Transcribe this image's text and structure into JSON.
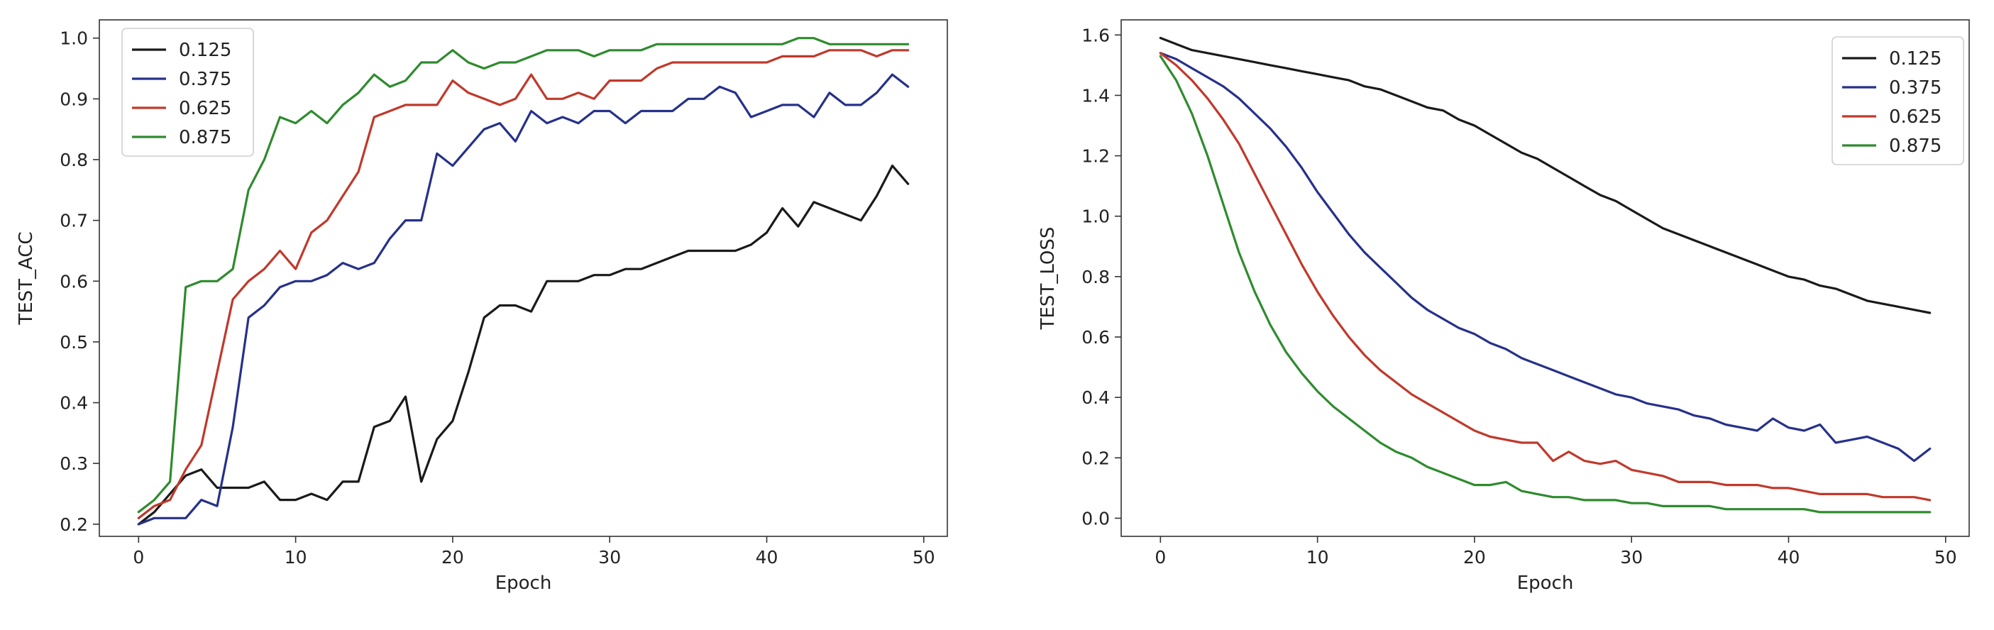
{
  "chart_data": [
    {
      "type": "line",
      "xlabel": "Epoch",
      "ylabel": "TEST_ACC",
      "xlim": [
        -2.5,
        51.5
      ],
      "ylim": [
        0.18,
        1.03
      ],
      "xticks": [
        0,
        10,
        20,
        30,
        40,
        50
      ],
      "yticks": [
        0.2,
        0.3,
        0.4,
        0.5,
        0.6,
        0.7,
        0.8,
        0.9,
        1.0
      ],
      "yticks_labels": [
        "0.2",
        "0.3",
        "0.4",
        "0.5",
        "0.6",
        "0.7",
        "0.8",
        "0.9",
        "1.0"
      ],
      "grid": false,
      "legend_position": "top-left",
      "series": [
        {
          "name": "0.125",
          "color": "#1a1a1a",
          "x": [
            0,
            1,
            2,
            3,
            4,
            5,
            6,
            7,
            8,
            9,
            10,
            11,
            12,
            13,
            14,
            15,
            16,
            17,
            18,
            19,
            20,
            21,
            22,
            23,
            24,
            25,
            26,
            27,
            28,
            29,
            30,
            31,
            32,
            33,
            34,
            35,
            36,
            37,
            38,
            39,
            40,
            41,
            42,
            43,
            44,
            45,
            46,
            47,
            48,
            49
          ],
          "values": [
            0.2,
            0.22,
            0.25,
            0.28,
            0.29,
            0.26,
            0.26,
            0.26,
            0.27,
            0.24,
            0.24,
            0.25,
            0.24,
            0.27,
            0.27,
            0.36,
            0.37,
            0.41,
            0.27,
            0.34,
            0.37,
            0.45,
            0.54,
            0.56,
            0.56,
            0.55,
            0.6,
            0.6,
            0.6,
            0.61,
            0.61,
            0.62,
            0.62,
            0.63,
            0.64,
            0.65,
            0.65,
            0.65,
            0.65,
            0.66,
            0.68,
            0.72,
            0.69,
            0.73,
            0.72,
            0.71,
            0.7,
            0.74,
            0.79,
            0.76
          ]
        },
        {
          "name": "0.375",
          "color": "#26318a",
          "x": [
            0,
            1,
            2,
            3,
            4,
            5,
            6,
            7,
            8,
            9,
            10,
            11,
            12,
            13,
            14,
            15,
            16,
            17,
            18,
            19,
            20,
            21,
            22,
            23,
            24,
            25,
            26,
            27,
            28,
            29,
            30,
            31,
            32,
            33,
            34,
            35,
            36,
            37,
            38,
            39,
            40,
            41,
            42,
            43,
            44,
            45,
            46,
            47,
            48,
            49
          ],
          "values": [
            0.2,
            0.21,
            0.21,
            0.21,
            0.24,
            0.23,
            0.36,
            0.54,
            0.56,
            0.59,
            0.6,
            0.6,
            0.61,
            0.63,
            0.62,
            0.63,
            0.67,
            0.7,
            0.7,
            0.81,
            0.79,
            0.82,
            0.85,
            0.86,
            0.83,
            0.88,
            0.86,
            0.87,
            0.86,
            0.88,
            0.88,
            0.86,
            0.88,
            0.88,
            0.88,
            0.9,
            0.9,
            0.92,
            0.91,
            0.87,
            0.88,
            0.89,
            0.89,
            0.87,
            0.91,
            0.89,
            0.89,
            0.91,
            0.94,
            0.92
          ]
        },
        {
          "name": "0.625",
          "color": "#c0392b",
          "x": [
            0,
            1,
            2,
            3,
            4,
            5,
            6,
            7,
            8,
            9,
            10,
            11,
            12,
            13,
            14,
            15,
            16,
            17,
            18,
            19,
            20,
            21,
            22,
            23,
            24,
            25,
            26,
            27,
            28,
            29,
            30,
            31,
            32,
            33,
            34,
            35,
            36,
            37,
            38,
            39,
            40,
            41,
            42,
            43,
            44,
            45,
            46,
            47,
            48,
            49
          ],
          "values": [
            0.21,
            0.23,
            0.24,
            0.29,
            0.33,
            0.45,
            0.57,
            0.6,
            0.62,
            0.65,
            0.62,
            0.68,
            0.7,
            0.74,
            0.78,
            0.87,
            0.88,
            0.89,
            0.89,
            0.89,
            0.93,
            0.91,
            0.9,
            0.89,
            0.9,
            0.94,
            0.9,
            0.9,
            0.91,
            0.9,
            0.93,
            0.93,
            0.93,
            0.95,
            0.96,
            0.96,
            0.96,
            0.96,
            0.96,
            0.96,
            0.96,
            0.97,
            0.97,
            0.97,
            0.98,
            0.98,
            0.98,
            0.97,
            0.98,
            0.98
          ]
        },
        {
          "name": "0.875",
          "color": "#2e8b2e",
          "x": [
            0,
            1,
            2,
            3,
            4,
            5,
            6,
            7,
            8,
            9,
            10,
            11,
            12,
            13,
            14,
            15,
            16,
            17,
            18,
            19,
            20,
            21,
            22,
            23,
            24,
            25,
            26,
            27,
            28,
            29,
            30,
            31,
            32,
            33,
            34,
            35,
            36,
            37,
            38,
            39,
            40,
            41,
            42,
            43,
            44,
            45,
            46,
            47,
            48,
            49
          ],
          "values": [
            0.22,
            0.24,
            0.27,
            0.59,
            0.6,
            0.6,
            0.62,
            0.75,
            0.8,
            0.87,
            0.86,
            0.88,
            0.86,
            0.89,
            0.91,
            0.94,
            0.92,
            0.93,
            0.96,
            0.96,
            0.98,
            0.96,
            0.95,
            0.96,
            0.96,
            0.97,
            0.98,
            0.98,
            0.98,
            0.97,
            0.98,
            0.98,
            0.98,
            0.99,
            0.99,
            0.99,
            0.99,
            0.99,
            0.99,
            0.99,
            0.99,
            0.99,
            1.0,
            1.0,
            0.99,
            0.99,
            0.99,
            0.99,
            0.99,
            0.99
          ]
        }
      ]
    },
    {
      "type": "line",
      "xlabel": "Epoch",
      "ylabel": "TEST_LOSS",
      "xlim": [
        -2.5,
        51.5
      ],
      "ylim": [
        -0.06,
        1.65
      ],
      "xticks": [
        0,
        10,
        20,
        30,
        40,
        50
      ],
      "yticks": [
        0.0,
        0.2,
        0.4,
        0.6,
        0.8,
        1.0,
        1.2,
        1.4,
        1.6
      ],
      "yticks_labels": [
        "0.0",
        "0.2",
        "0.4",
        "0.6",
        "0.8",
        "1.0",
        "1.2",
        "1.4",
        "1.6"
      ],
      "grid": false,
      "legend_position": "top-right",
      "series": [
        {
          "name": "0.125",
          "color": "#1a1a1a",
          "x": [
            0,
            1,
            2,
            3,
            4,
            5,
            6,
            7,
            8,
            9,
            10,
            11,
            12,
            13,
            14,
            15,
            16,
            17,
            18,
            19,
            20,
            21,
            22,
            23,
            24,
            25,
            26,
            27,
            28,
            29,
            30,
            31,
            32,
            33,
            34,
            35,
            36,
            37,
            38,
            39,
            40,
            41,
            42,
            43,
            44,
            45,
            46,
            47,
            48,
            49
          ],
          "values": [
            1.59,
            1.57,
            1.55,
            1.54,
            1.53,
            1.52,
            1.51,
            1.5,
            1.49,
            1.48,
            1.47,
            1.46,
            1.45,
            1.43,
            1.42,
            1.4,
            1.38,
            1.36,
            1.35,
            1.32,
            1.3,
            1.27,
            1.24,
            1.21,
            1.19,
            1.16,
            1.13,
            1.1,
            1.07,
            1.05,
            1.02,
            0.99,
            0.96,
            0.94,
            0.92,
            0.9,
            0.88,
            0.86,
            0.84,
            0.82,
            0.8,
            0.79,
            0.77,
            0.76,
            0.74,
            0.72,
            0.71,
            0.7,
            0.69,
            0.68
          ]
        },
        {
          "name": "0.375",
          "color": "#26318a",
          "x": [
            0,
            1,
            2,
            3,
            4,
            5,
            6,
            7,
            8,
            9,
            10,
            11,
            12,
            13,
            14,
            15,
            16,
            17,
            18,
            19,
            20,
            21,
            22,
            23,
            24,
            25,
            26,
            27,
            28,
            29,
            30,
            31,
            32,
            33,
            34,
            35,
            36,
            37,
            38,
            39,
            40,
            41,
            42,
            43,
            44,
            45,
            46,
            47,
            48,
            49
          ],
          "values": [
            1.54,
            1.52,
            1.49,
            1.46,
            1.43,
            1.39,
            1.34,
            1.29,
            1.23,
            1.16,
            1.08,
            1.01,
            0.94,
            0.88,
            0.83,
            0.78,
            0.73,
            0.69,
            0.66,
            0.63,
            0.61,
            0.58,
            0.56,
            0.53,
            0.51,
            0.49,
            0.47,
            0.45,
            0.43,
            0.41,
            0.4,
            0.38,
            0.37,
            0.36,
            0.34,
            0.33,
            0.31,
            0.3,
            0.29,
            0.33,
            0.3,
            0.29,
            0.31,
            0.25,
            0.26,
            0.27,
            0.25,
            0.23,
            0.19,
            0.23
          ]
        },
        {
          "name": "0.625",
          "color": "#c0392b",
          "x": [
            0,
            1,
            2,
            3,
            4,
            5,
            6,
            7,
            8,
            9,
            10,
            11,
            12,
            13,
            14,
            15,
            16,
            17,
            18,
            19,
            20,
            21,
            22,
            23,
            24,
            25,
            26,
            27,
            28,
            29,
            30,
            31,
            32,
            33,
            34,
            35,
            36,
            37,
            38,
            39,
            40,
            41,
            42,
            43,
            44,
            45,
            46,
            47,
            48,
            49
          ],
          "values": [
            1.54,
            1.5,
            1.45,
            1.39,
            1.32,
            1.24,
            1.14,
            1.04,
            0.94,
            0.84,
            0.75,
            0.67,
            0.6,
            0.54,
            0.49,
            0.45,
            0.41,
            0.38,
            0.35,
            0.32,
            0.29,
            0.27,
            0.26,
            0.25,
            0.25,
            0.19,
            0.22,
            0.19,
            0.18,
            0.19,
            0.16,
            0.15,
            0.14,
            0.12,
            0.12,
            0.12,
            0.11,
            0.11,
            0.11,
            0.1,
            0.1,
            0.09,
            0.08,
            0.08,
            0.08,
            0.08,
            0.07,
            0.07,
            0.07,
            0.06
          ]
        },
        {
          "name": "0.875",
          "color": "#2e8b2e",
          "x": [
            0,
            1,
            2,
            3,
            4,
            5,
            6,
            7,
            8,
            9,
            10,
            11,
            12,
            13,
            14,
            15,
            16,
            17,
            18,
            19,
            20,
            21,
            22,
            23,
            24,
            25,
            26,
            27,
            28,
            29,
            30,
            31,
            32,
            33,
            34,
            35,
            36,
            37,
            38,
            39,
            40,
            41,
            42,
            43,
            44,
            45,
            46,
            47,
            48,
            49
          ],
          "values": [
            1.53,
            1.45,
            1.34,
            1.2,
            1.04,
            0.88,
            0.75,
            0.64,
            0.55,
            0.48,
            0.42,
            0.37,
            0.33,
            0.29,
            0.25,
            0.22,
            0.2,
            0.17,
            0.15,
            0.13,
            0.11,
            0.11,
            0.12,
            0.09,
            0.08,
            0.07,
            0.07,
            0.06,
            0.06,
            0.06,
            0.05,
            0.05,
            0.04,
            0.04,
            0.04,
            0.04,
            0.03,
            0.03,
            0.03,
            0.03,
            0.03,
            0.03,
            0.02,
            0.02,
            0.02,
            0.02,
            0.02,
            0.02,
            0.02,
            0.02
          ]
        }
      ]
    }
  ]
}
